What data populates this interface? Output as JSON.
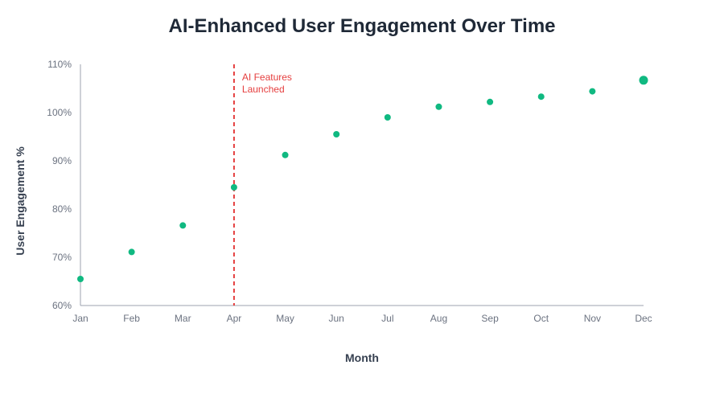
{
  "chart_data": {
    "type": "scatter",
    "title": "AI-Enhanced User Engagement Over Time",
    "xlabel": "Month",
    "ylabel": "User Engagement %",
    "categories": [
      "Jan",
      "Feb",
      "Mar",
      "Apr",
      "May",
      "Jun",
      "Jul",
      "Aug",
      "Sep",
      "Oct",
      "Nov",
      "Dec"
    ],
    "series": [
      {
        "name": "User Engagement",
        "values": [
          65.5,
          71.1,
          76.6,
          84.5,
          91.2,
          95.5,
          99.0,
          101.2,
          102.2,
          103.3,
          104.4,
          106.7
        ],
        "highlight_last": true
      }
    ],
    "ylim": [
      60,
      110
    ],
    "yticks": [
      60,
      70,
      80,
      90,
      100,
      110
    ],
    "ytick_labels": [
      "60%",
      "70%",
      "80%",
      "90%",
      "100%",
      "110%"
    ],
    "grid": false,
    "annotation": {
      "category": "Apr",
      "lines": [
        "AI Features",
        "Launched"
      ]
    },
    "colors": {
      "point": "#10b981",
      "annotation": "#e53e3e",
      "axis": "#9ca3af",
      "title": "#1f2937"
    }
  }
}
